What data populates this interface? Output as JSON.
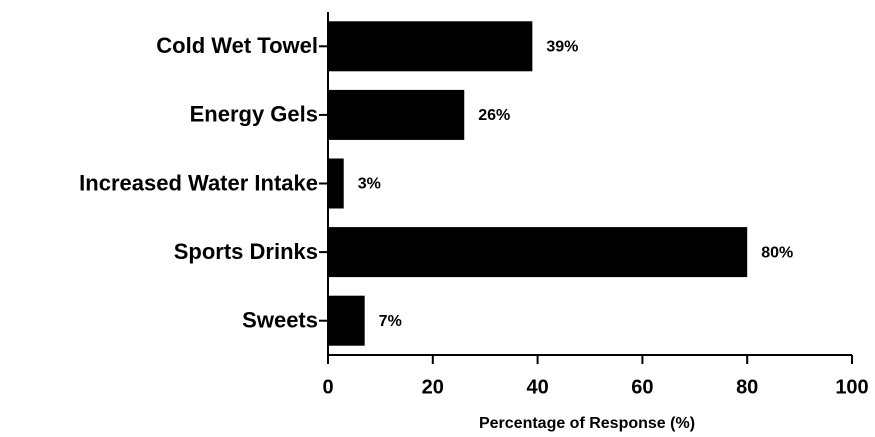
{
  "chart_data": {
    "type": "bar",
    "orientation": "horizontal",
    "categories": [
      "Cold Wet Towel",
      "Energy Gels",
      "Increased Water Intake",
      "Sports Drinks",
      "Sweets"
    ],
    "values": [
      39,
      26,
      3,
      80,
      7
    ],
    "value_labels": [
      "39%",
      "26%",
      "3%",
      "80%",
      "7%"
    ],
    "color": "#000000",
    "xlabel": "Percentage of Response (%)",
    "xlim": [
      0,
      100
    ],
    "xticks": [
      0,
      20,
      40,
      60,
      80,
      100
    ]
  }
}
